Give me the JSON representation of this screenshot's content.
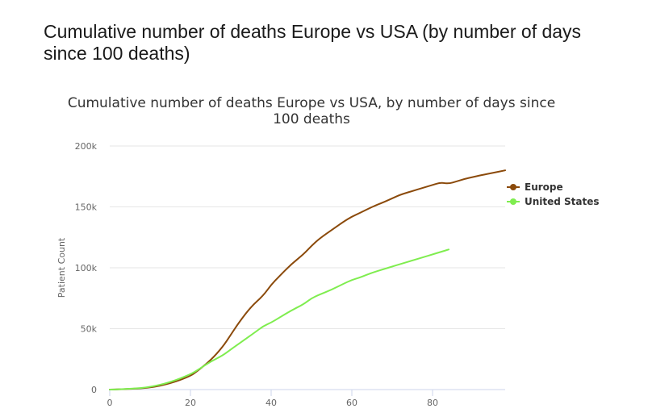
{
  "page": {
    "heading": "Cumulative number of deaths Europe vs USA (by number of days since 100 deaths)"
  },
  "chart_data": {
    "type": "line",
    "title_lines": [
      "Cumulative number of deaths Europe vs USA, by number of days since",
      "100 deaths"
    ],
    "xlabel": "",
    "ylabel": "Patient Count",
    "xlim": [
      0,
      98
    ],
    "ylim": [
      0,
      200000
    ],
    "x_ticks": [
      0,
      20,
      40,
      60,
      80
    ],
    "y_ticks": [
      0,
      50000,
      100000,
      150000,
      200000
    ],
    "y_tick_labels": [
      "0",
      "50k",
      "100k",
      "150k",
      "200k"
    ],
    "grid": true,
    "legend_position": "right",
    "series": [
      {
        "name": "Europe",
        "color": "#8b4a0b",
        "x": [
          0,
          5,
          10,
          15,
          20,
          22,
          25,
          28,
          30,
          32,
          35,
          38,
          40,
          42,
          45,
          48,
          50,
          52,
          55,
          58,
          60,
          62,
          65,
          68,
          70,
          72,
          75,
          78,
          80,
          82,
          84,
          86,
          88,
          90,
          92,
          95,
          98
        ],
        "y": [
          0,
          500,
          1500,
          5000,
          11000,
          16000,
          24000,
          35000,
          45000,
          55000,
          68000,
          77000,
          86000,
          93000,
          103000,
          111000,
          118000,
          124000,
          131000,
          138000,
          142000,
          145000,
          150000,
          154000,
          157000,
          160000,
          163000,
          166000,
          168000,
          170000,
          169000,
          171000,
          173000,
          174500,
          176000,
          178000,
          180000
        ]
      },
      {
        "name": "United States",
        "color": "#7fed4f",
        "x": [
          0,
          5,
          10,
          15,
          20,
          22,
          25,
          28,
          30,
          33,
          36,
          38,
          40,
          42,
          45,
          48,
          50,
          52,
          55,
          58,
          60,
          62,
          65,
          68,
          70,
          72,
          75,
          78,
          80,
          82,
          84
        ],
        "y": [
          0,
          500,
          2000,
          6000,
          12500,
          16500,
          23000,
          28000,
          33000,
          40000,
          47000,
          52000,
          55000,
          59000,
          65000,
          70000,
          75000,
          78000,
          82000,
          87000,
          90000,
          92000,
          96000,
          99000,
          101000,
          103000,
          106000,
          109000,
          111000,
          113000,
          115000
        ]
      }
    ]
  }
}
